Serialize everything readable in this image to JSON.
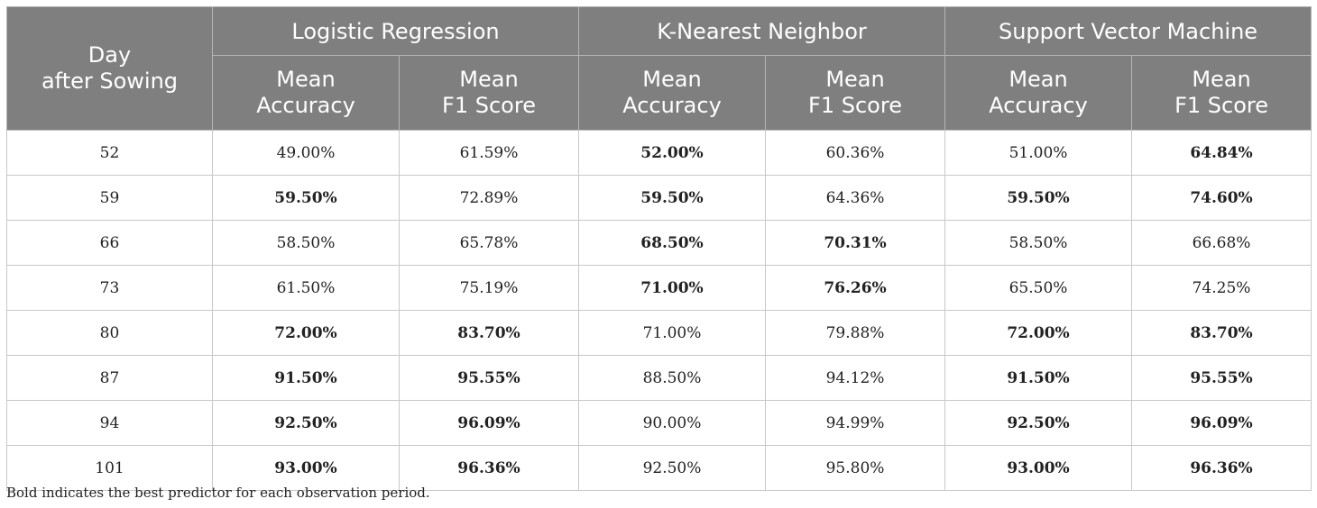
{
  "header": {
    "day_label": "Day\nafter Sowing",
    "groups": [
      "Logistic Regression",
      "K-Nearest Neighbor",
      "Support Vector Machine"
    ],
    "sub": [
      "Mean\nAccuracy",
      "Mean\nF1 Score"
    ]
  },
  "rows": [
    {
      "day": "52",
      "cells": [
        "49.00%",
        "61.59%",
        "52.00%",
        "60.36%",
        "51.00%",
        "64.84%"
      ],
      "bold": [
        false,
        false,
        true,
        false,
        false,
        true
      ]
    },
    {
      "day": "59",
      "cells": [
        "59.50%",
        "72.89%",
        "59.50%",
        "64.36%",
        "59.50%",
        "74.60%"
      ],
      "bold": [
        true,
        false,
        true,
        false,
        true,
        true
      ]
    },
    {
      "day": "66",
      "cells": [
        "58.50%",
        "65.78%",
        "68.50%",
        "70.31%",
        "58.50%",
        "66.68%"
      ],
      "bold": [
        false,
        false,
        true,
        true,
        false,
        false
      ]
    },
    {
      "day": "73",
      "cells": [
        "61.50%",
        "75.19%",
        "71.00%",
        "76.26%",
        "65.50%",
        "74.25%"
      ],
      "bold": [
        false,
        false,
        true,
        true,
        false,
        false
      ]
    },
    {
      "day": "80",
      "cells": [
        "72.00%",
        "83.70%",
        "71.00%",
        "79.88%",
        "72.00%",
        "83.70%"
      ],
      "bold": [
        true,
        true,
        false,
        false,
        true,
        true
      ]
    },
    {
      "day": "87",
      "cells": [
        "91.50%",
        "95.55%",
        "88.50%",
        "94.12%",
        "91.50%",
        "95.55%"
      ],
      "bold": [
        true,
        true,
        false,
        false,
        true,
        true
      ]
    },
    {
      "day": "94",
      "cells": [
        "92.50%",
        "96.09%",
        "90.00%",
        "94.99%",
        "92.50%",
        "96.09%"
      ],
      "bold": [
        true,
        true,
        false,
        false,
        true,
        true
      ]
    },
    {
      "day": "101",
      "cells": [
        "93.00%",
        "96.36%",
        "92.50%",
        "95.80%",
        "93.00%",
        "96.36%"
      ],
      "bold": [
        true,
        true,
        false,
        false,
        true,
        true
      ]
    }
  ],
  "footnote": "Bold indicates the best predictor for each observation period."
}
